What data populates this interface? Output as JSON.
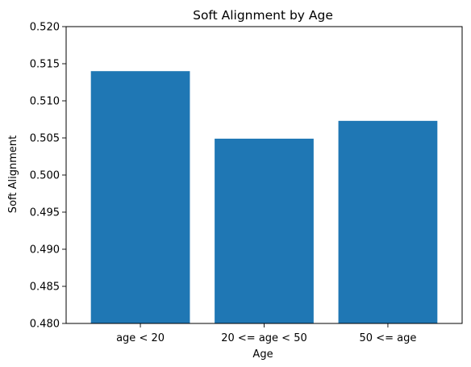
{
  "chart_data": {
    "type": "bar",
    "title": "Soft Alignment by Age",
    "xlabel": "Age",
    "ylabel": "Soft Alignment",
    "categories": [
      "age < 20",
      "20 <= age < 50",
      "50 <= age"
    ],
    "values": [
      0.514,
      0.5049,
      0.5073
    ],
    "ylim": [
      0.48,
      0.52
    ],
    "yticks": [
      "0.480",
      "0.485",
      "0.490",
      "0.495",
      "0.500",
      "0.505",
      "0.510",
      "0.515",
      "0.520"
    ],
    "bar_color": "#1f77b4",
    "grid": false,
    "legend": "none"
  }
}
